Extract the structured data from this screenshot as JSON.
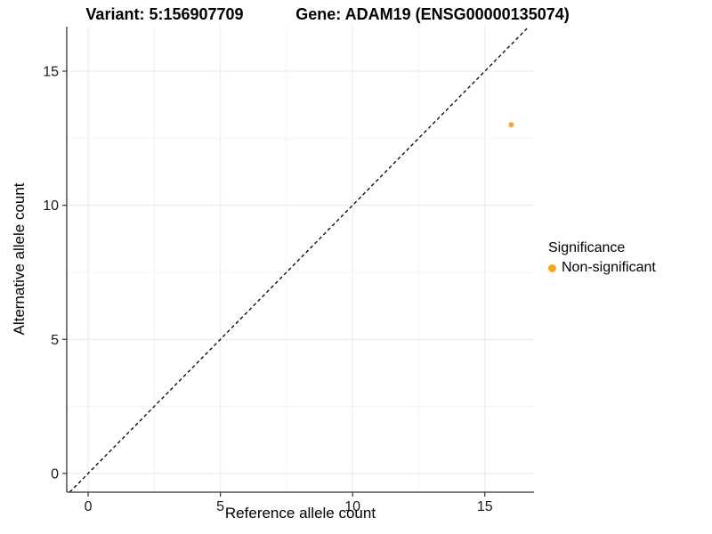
{
  "titles": {
    "variant": "Variant: 5:156907709",
    "gene": "Gene: ADAM19 (ENSG00000135074)"
  },
  "chart_data": {
    "type": "scatter",
    "title": "Variant: 5:156907709 | Gene: ADAM19 (ENSG00000135074)",
    "xlabel": "Reference allele count",
    "ylabel": "Alternative allele count",
    "x_ticks": [
      0,
      5,
      10,
      15
    ],
    "y_ticks": [
      0,
      5,
      10,
      15
    ],
    "x_minor_ticks": [
      2.5,
      7.5,
      12.5
    ],
    "y_minor_ticks": [
      2.5,
      7.5,
      12.5
    ],
    "xlim": [
      -0.81,
      16.86
    ],
    "ylim": [
      -0.7,
      16.66
    ],
    "grid": true,
    "identity_line": {
      "type": "y=x",
      "style": "dashed",
      "color": "#000000"
    },
    "points": [
      {
        "x": 16,
        "y": 13,
        "series": "Non-significant"
      }
    ],
    "legend": {
      "title": "Significance",
      "position": "right",
      "items": [
        {
          "label": "Non-significant",
          "color": "#FFA318"
        }
      ]
    },
    "colors": {
      "point": "#FAA43A",
      "major_grid": "#e9e9e9",
      "minor_grid": "#f4f4f4",
      "axis_line": "#333333",
      "tick_label": "#1a1a1a"
    }
  }
}
